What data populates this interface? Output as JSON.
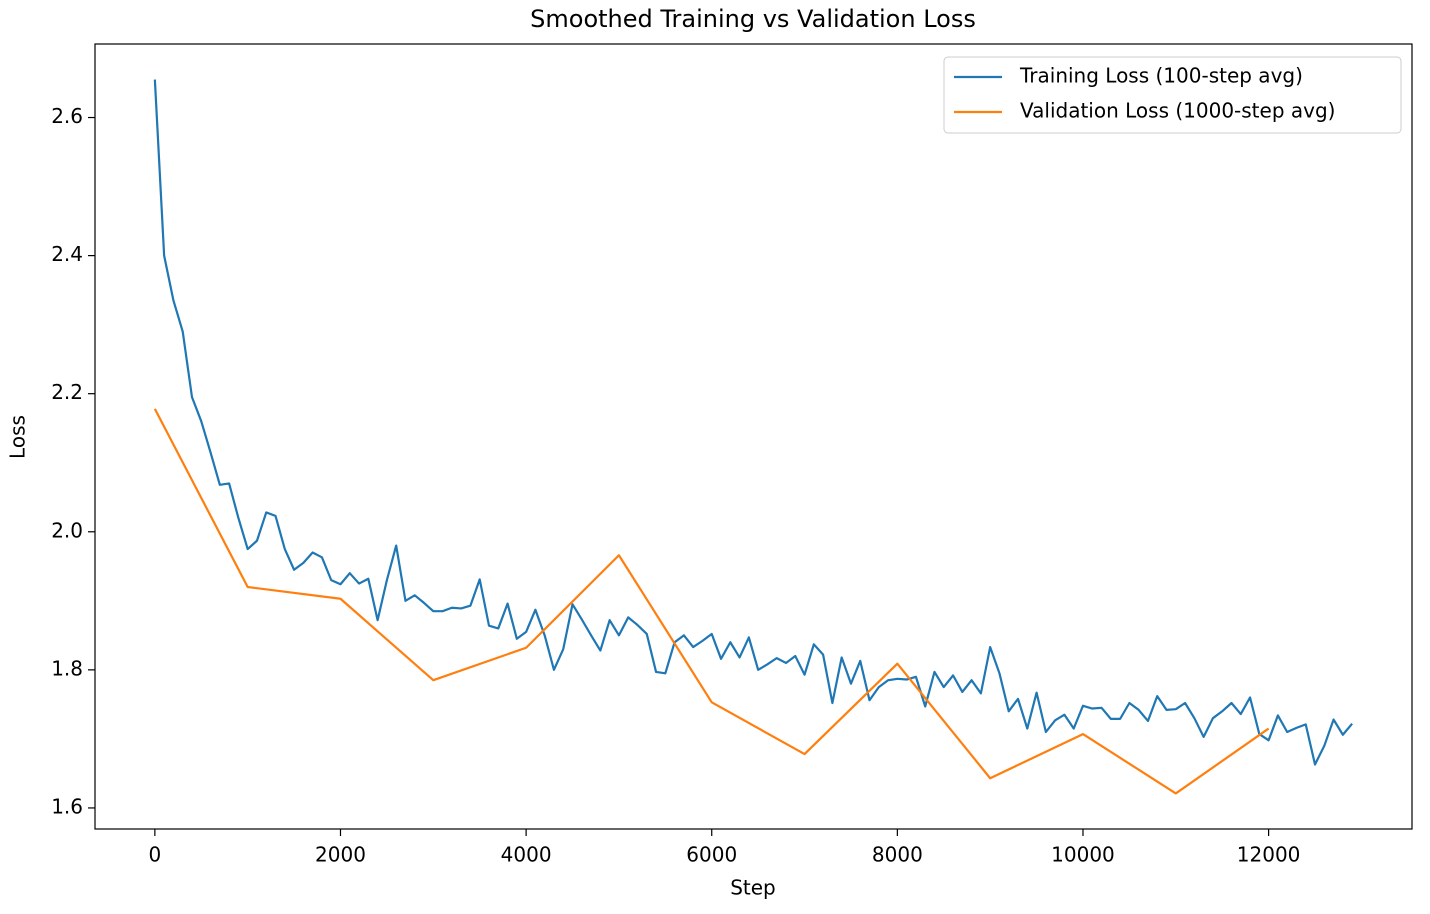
{
  "chart_data": {
    "type": "line",
    "title": "Smoothed Training vs Validation Loss",
    "x_label": "Step",
    "y_label": "Loss",
    "xlim": [
      -645,
      13545
    ],
    "ylim": [
      1.5695,
      2.7065
    ],
    "xticks": [
      0,
      2000,
      4000,
      6000,
      8000,
      10000,
      12000
    ],
    "yticks": [
      1.6,
      1.8,
      {
        "value": 2.0,
        "label": "2.0"
      },
      2.2,
      2.4,
      2.6
    ],
    "legend": "upper right",
    "grid": false,
    "series": [
      {
        "name": "Training Loss (100-step avg)",
        "color": "#1f77b4",
        "x": [
          0,
          100,
          200,
          300,
          400,
          500,
          600,
          700,
          800,
          900,
          1000,
          1100,
          1200,
          1300,
          1400,
          1500,
          1600,
          1700,
          1800,
          1900,
          2000,
          2100,
          2200,
          2300,
          2400,
          2500,
          2600,
          2700,
          2800,
          2900,
          3000,
          3100,
          3200,
          3300,
          3400,
          3500,
          3600,
          3700,
          3800,
          3900,
          4000,
          4100,
          4200,
          4300,
          4400,
          4500,
          4600,
          4700,
          4800,
          4900,
          5000,
          5100,
          5200,
          5300,
          5400,
          5500,
          5600,
          5700,
          5800,
          5900,
          6000,
          6100,
          6200,
          6300,
          6400,
          6500,
          6600,
          6700,
          6800,
          6900,
          7000,
          7100,
          7200,
          7300,
          7400,
          7500,
          7600,
          7700,
          7800,
          7900,
          8000,
          8100,
          8200,
          8300,
          8400,
          8500,
          8600,
          8700,
          8800,
          8900,
          9000,
          9100,
          9200,
          9300,
          9400,
          9500,
          9600,
          9700,
          9800,
          9900,
          10000,
          10100,
          10200,
          10300,
          10400,
          10500,
          10600,
          10700,
          10800,
          10900,
          11000,
          11100,
          11200,
          11300,
          11400,
          11500,
          11600,
          11700,
          11800,
          11900,
          12000,
          12100,
          12200,
          12300,
          12400,
          12500,
          12600,
          12700,
          12800,
          12900
        ],
        "values": [
          2.655,
          2.4,
          2.335,
          2.29,
          2.195,
          2.16,
          2.115,
          2.068,
          2.07,
          2.02,
          1.975,
          1.987,
          2.028,
          2.023,
          1.975,
          1.945,
          1.955,
          1.97,
          1.963,
          1.93,
          1.924,
          1.94,
          1.925,
          1.932,
          1.872,
          1.93,
          1.98,
          1.9,
          1.908,
          1.897,
          1.885,
          1.885,
          1.89,
          1.889,
          1.893,
          1.931,
          1.864,
          1.86,
          1.896,
          1.845,
          1.855,
          1.887,
          1.85,
          1.8,
          1.83,
          1.895,
          1.873,
          1.85,
          1.828,
          1.872,
          1.85,
          1.876,
          1.865,
          1.852,
          1.797,
          1.795,
          1.84,
          1.85,
          1.833,
          1.842,
          1.852,
          1.816,
          1.84,
          1.818,
          1.847,
          1.8,
          1.808,
          1.817,
          1.81,
          1.82,
          1.793,
          1.837,
          1.822,
          1.752,
          1.818,
          1.78,
          1.813,
          1.756,
          1.775,
          1.785,
          1.787,
          1.786,
          1.79,
          1.747,
          1.797,
          1.775,
          1.792,
          1.768,
          1.785,
          1.766,
          1.833,
          1.795,
          1.74,
          1.758,
          1.715,
          1.767,
          1.71,
          1.727,
          1.735,
          1.715,
          1.748,
          1.744,
          1.745,
          1.729,
          1.729,
          1.752,
          1.742,
          1.726,
          1.762,
          1.742,
          1.743,
          1.752,
          1.73,
          1.703,
          1.73,
          1.74,
          1.752,
          1.736,
          1.76,
          1.707,
          1.698,
          1.734,
          1.71,
          1.716,
          1.721,
          1.663,
          1.69,
          1.728,
          1.706,
          1.722
        ]
      },
      {
        "name": "Validation Loss (1000-step avg)",
        "color": "#ff7f0e",
        "x": [
          0,
          1000,
          2000,
          3000,
          4000,
          5000,
          6000,
          7000,
          8000,
          9000,
          10000,
          11000,
          12000
        ],
        "values": [
          2.178,
          1.92,
          1.903,
          1.785,
          1.832,
          1.966,
          1.753,
          1.678,
          1.809,
          1.643,
          1.707,
          1.621,
          1.715
        ]
      }
    ]
  }
}
